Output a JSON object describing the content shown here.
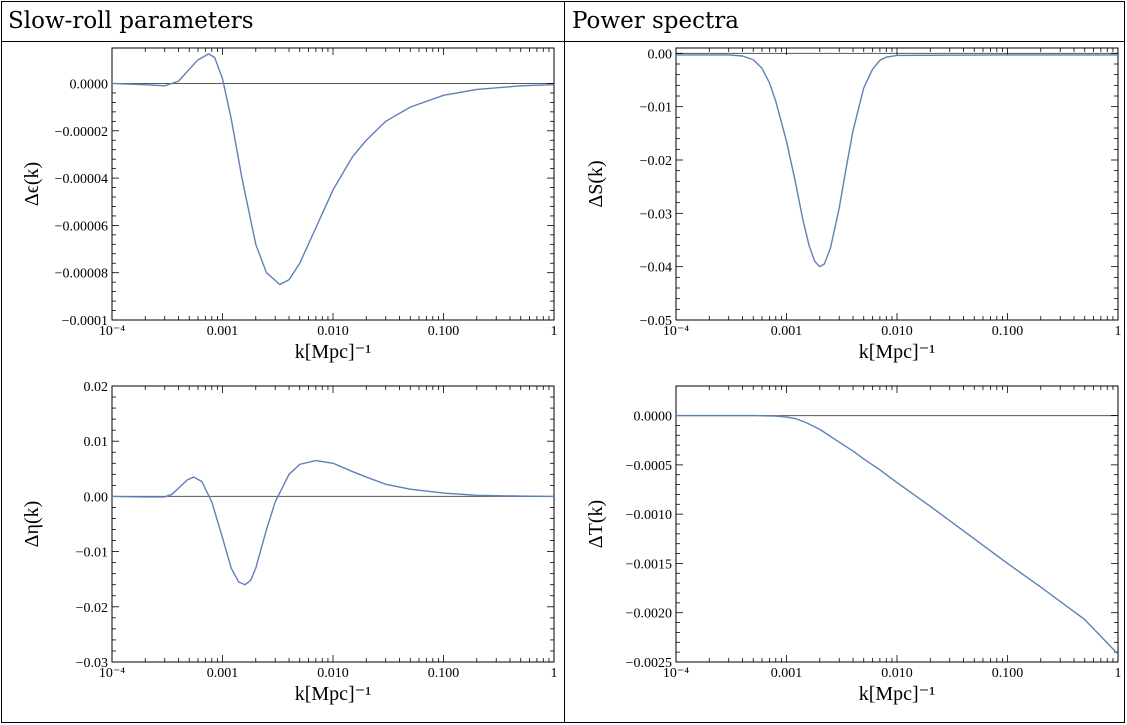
{
  "columns": {
    "left_title": "Slow-roll parameters",
    "right_title": "Power spectra"
  },
  "chart_data": [
    {
      "type": "line",
      "xlabel": "k[Mpc]⁻¹",
      "ylabel": "Δϵ(k)",
      "xscale": "log",
      "xlim": [
        0.0001,
        1
      ],
      "ylim": [
        -0.0001,
        1.5e-05
      ],
      "xticks": [
        "10⁻⁴",
        "0.001",
        "0.010",
        "0.100",
        "1"
      ],
      "yticks": [
        "0.0000",
        "−0.00002",
        "−0.00004",
        "−0.00006",
        "−0.00008",
        "−0.0001"
      ],
      "ytick_values": [
        0,
        -2e-05,
        -4e-05,
        -6e-05,
        -8e-05,
        -0.0001
      ],
      "series": [
        {
          "color": "#5e81b5",
          "points": [
            [
              0.0001,
              0
            ],
            [
              0.0002,
              -5e-07
            ],
            [
              0.0003,
              -1e-06
            ],
            [
              0.0004,
              1e-06
            ],
            [
              0.0005,
              6e-06
            ],
            [
              0.0006,
              1e-05
            ],
            [
              0.00075,
              1.25e-05
            ],
            [
              0.00085,
              1.1e-05
            ],
            [
              0.001,
              2e-06
            ],
            [
              0.0012,
              -1.5e-05
            ],
            [
              0.0015,
              -4e-05
            ],
            [
              0.002,
              -6.8e-05
            ],
            [
              0.0025,
              -8e-05
            ],
            [
              0.0033,
              -8.5e-05
            ],
            [
              0.004,
              -8.3e-05
            ],
            [
              0.005,
              -7.6e-05
            ],
            [
              0.007,
              -6.1e-05
            ],
            [
              0.01,
              -4.5e-05
            ],
            [
              0.015,
              -3.1e-05
            ],
            [
              0.02,
              -2.4e-05
            ],
            [
              0.03,
              -1.6e-05
            ],
            [
              0.05,
              -1e-05
            ],
            [
              0.1,
              -5e-06
            ],
            [
              0.2,
              -2.5e-06
            ],
            [
              0.5,
              -1e-06
            ],
            [
              1,
              -5e-07
            ]
          ]
        }
      ]
    },
    {
      "type": "line",
      "xlabel": "k[Mpc]⁻¹",
      "ylabel": "ΔS(k)",
      "xscale": "log",
      "xlim": [
        0.0001,
        1
      ],
      "ylim": [
        -0.05,
        0.001
      ],
      "xticks": [
        "10⁻⁴",
        "0.001",
        "0.010",
        "0.100",
        "1"
      ],
      "yticks": [
        "0.00",
        "−0.01",
        "−0.02",
        "−0.03",
        "−0.04",
        "−0.05"
      ],
      "ytick_values": [
        0,
        -0.01,
        -0.02,
        -0.03,
        -0.04,
        -0.05
      ],
      "series": [
        {
          "color": "#5e81b5",
          "points": [
            [
              0.0001,
              -0.0003
            ],
            [
              0.0003,
              -0.0003
            ],
            [
              0.0004,
              -0.0005
            ],
            [
              0.0005,
              -0.0012
            ],
            [
              0.0006,
              -0.0028
            ],
            [
              0.0007,
              -0.0055
            ],
            [
              0.0008,
              -0.009
            ],
            [
              0.001,
              -0.0165
            ],
            [
              0.0012,
              -0.024
            ],
            [
              0.0014,
              -0.031
            ],
            [
              0.0016,
              -0.036
            ],
            [
              0.0018,
              -0.039
            ],
            [
              0.002,
              -0.04
            ],
            [
              0.0022,
              -0.0395
            ],
            [
              0.0025,
              -0.0365
            ],
            [
              0.003,
              -0.029
            ],
            [
              0.0035,
              -0.021
            ],
            [
              0.004,
              -0.0145
            ],
            [
              0.005,
              -0.0065
            ],
            [
              0.006,
              -0.003
            ],
            [
              0.007,
              -0.0013
            ],
            [
              0.008,
              -0.0007
            ],
            [
              0.01,
              -0.0004
            ],
            [
              0.1,
              -0.0003
            ],
            [
              1,
              -0.0003
            ]
          ]
        }
      ]
    },
    {
      "type": "line",
      "xlabel": "k[Mpc]⁻¹",
      "ylabel": "Δη(k)",
      "xscale": "log",
      "xlim": [
        0.0001,
        1
      ],
      "ylim": [
        -0.03,
        0.02
      ],
      "xticks": [
        "10⁻⁴",
        "0.001",
        "0.010",
        "0.100",
        "1"
      ],
      "yticks": [
        "0.02",
        "0.01",
        "0.00",
        "−0.01",
        "−0.02",
        "−0.03"
      ],
      "ytick_values": [
        0.02,
        0.01,
        0,
        -0.01,
        -0.02,
        -0.03
      ],
      "series": [
        {
          "color": "#5e81b5",
          "points": [
            [
              0.0001,
              0
            ],
            [
              0.0002,
              -0.0001
            ],
            [
              0.0003,
              -0.0001
            ],
            [
              0.00035,
              0.0004
            ],
            [
              0.0004,
              0.0015
            ],
            [
              0.00048,
              0.003
            ],
            [
              0.00055,
              0.0035
            ],
            [
              0.00065,
              0.0027
            ],
            [
              0.0008,
              -0.001
            ],
            [
              0.001,
              -0.0075
            ],
            [
              0.0012,
              -0.013
            ],
            [
              0.0014,
              -0.0155
            ],
            [
              0.0016,
              -0.016
            ],
            [
              0.0018,
              -0.0152
            ],
            [
              0.002,
              -0.013
            ],
            [
              0.0025,
              -0.006
            ],
            [
              0.003,
              -0.001
            ],
            [
              0.004,
              0.004
            ],
            [
              0.005,
              0.0058
            ],
            [
              0.007,
              0.0065
            ],
            [
              0.01,
              0.006
            ],
            [
              0.015,
              0.0045
            ],
            [
              0.02,
              0.0035
            ],
            [
              0.03,
              0.0022
            ],
            [
              0.05,
              0.0013
            ],
            [
              0.1,
              0.0006
            ],
            [
              0.2,
              0.0002
            ],
            [
              0.5,
              5e-05
            ],
            [
              1,
              0
            ]
          ]
        }
      ]
    },
    {
      "type": "line",
      "xlabel": "k[Mpc]⁻¹",
      "ylabel": "ΔT(k)",
      "xscale": "log",
      "xlim": [
        0.0001,
        1
      ],
      "ylim": [
        -0.0025,
        0.0003
      ],
      "xticks": [
        "10⁻⁴",
        "0.001",
        "0.010",
        "0.100",
        "1"
      ],
      "yticks": [
        "0.0000",
        "−0.0005",
        "−0.0010",
        "−0.0015",
        "−0.0020",
        "−0.0025"
      ],
      "ytick_values": [
        0,
        -0.0005,
        -0.001,
        -0.0015,
        -0.002,
        -0.0025
      ],
      "series": [
        {
          "color": "#5e81b5",
          "points": [
            [
              0.0001,
              0
            ],
            [
              0.0005,
              0
            ],
            [
              0.0008,
              -5e-06
            ],
            [
              0.001,
              -1.5e-05
            ],
            [
              0.0012,
              -3e-05
            ],
            [
              0.0015,
              -7e-05
            ],
            [
              0.002,
              -0.00014
            ],
            [
              0.0025,
              -0.00021
            ],
            [
              0.003,
              -0.00027
            ],
            [
              0.004,
              -0.00036
            ],
            [
              0.005,
              -0.00044
            ],
            [
              0.007,
              -0.00055
            ],
            [
              0.01,
              -0.00068
            ],
            [
              0.02,
              -0.00092
            ],
            [
              0.05,
              -0.00125
            ],
            [
              0.1,
              -0.0015
            ],
            [
              0.2,
              -0.00174
            ],
            [
              0.5,
              -0.00207
            ],
            [
              1,
              -0.00242
            ]
          ]
        }
      ]
    }
  ]
}
